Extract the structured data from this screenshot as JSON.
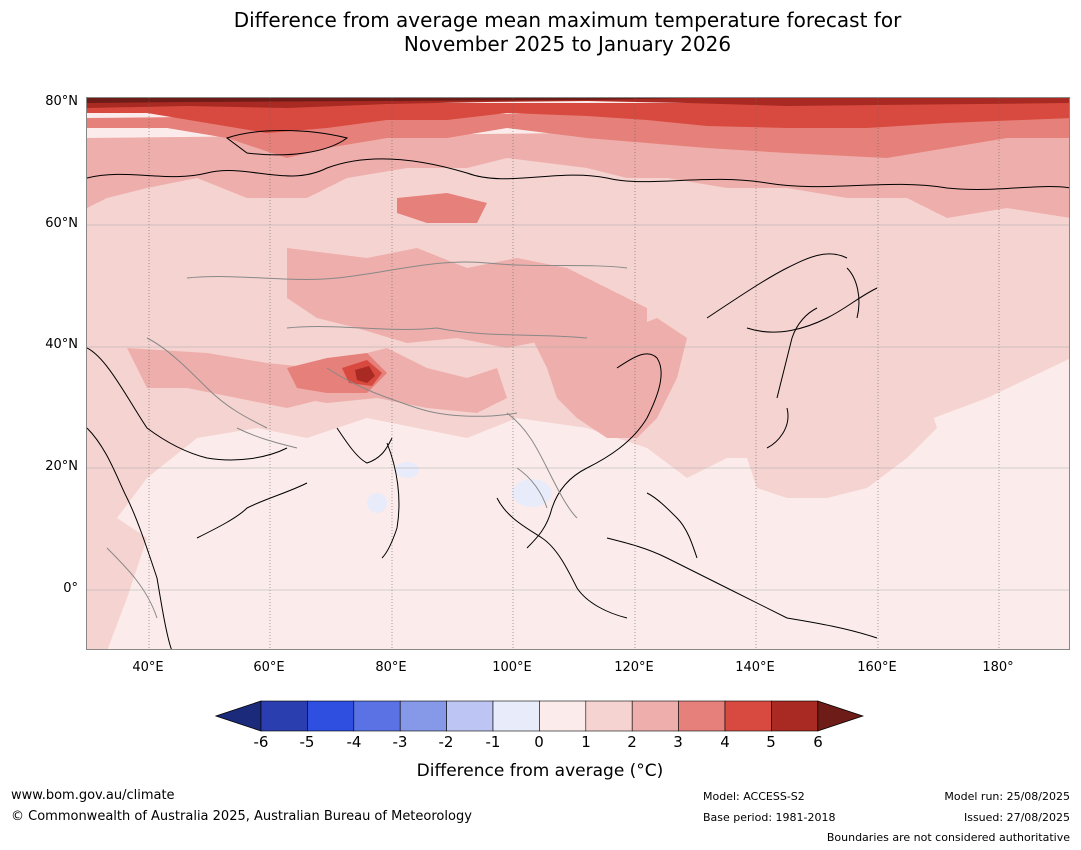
{
  "title_line1": "Difference from average mean maximum temperature forecast for",
  "title_line2": "November 2025 to January 2026",
  "map": {
    "lat_labels": [
      "80°N",
      "60°N",
      "40°N",
      "20°N",
      "0°"
    ],
    "lon_labels": [
      "40°E",
      "60°E",
      "80°E",
      "100°E",
      "120°E",
      "140°E",
      "160°E",
      "180°"
    ]
  },
  "colorbar": {
    "ticks": [
      "-6",
      "-5",
      "-4",
      "-3",
      "-2",
      "-1",
      "0",
      "1",
      "2",
      "3",
      "4",
      "5",
      "6"
    ],
    "colors": [
      "#1b2a7a",
      "#2a3eb0",
      "#2f4fe0",
      "#5a72e4",
      "#8699e8",
      "#bcc5f3",
      "#e8ebfa",
      "#fbeceb",
      "#f5d3d0",
      "#eeaeab",
      "#e6807a",
      "#d84a3f",
      "#a92a22",
      "#6e1c18"
    ],
    "label": "Difference from average (°C)"
  },
  "footer": {
    "website": "www.bom.gov.au/climate",
    "copyright": "© Commonwealth of Australia 2025, Australian Bureau of Meteorology",
    "model": "Model: ACCESS-S2",
    "base_period": "Base period: 1981-2018",
    "model_run": "Model run: 25/08/2025",
    "issued": "Issued: 27/08/2025",
    "disclaimer": "Boundaries are not considered authoritative"
  }
}
